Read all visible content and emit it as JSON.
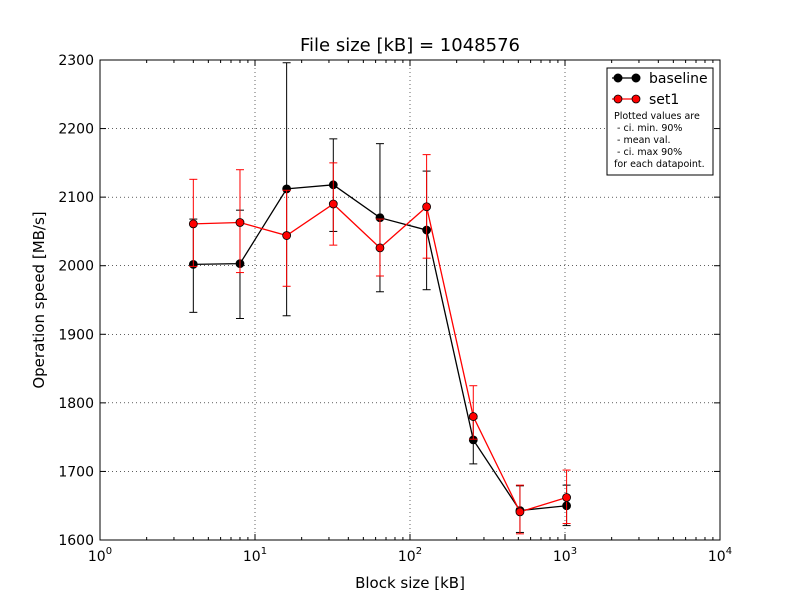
{
  "chart_data": {
    "type": "line",
    "title": "File size [kB] = 1048576",
    "xlabel": "Block size [kB]",
    "ylabel": "Operation speed [MB/s]",
    "xscale": "log",
    "xlim": [
      1,
      10000
    ],
    "ylim": [
      1600,
      2300
    ],
    "grid": true,
    "legend_position": "top-right",
    "x_ticks": [
      {
        "base": "10",
        "exp": "0"
      },
      {
        "base": "10",
        "exp": "1"
      },
      {
        "base": "10",
        "exp": "2"
      },
      {
        "base": "10",
        "exp": "3"
      },
      {
        "base": "10",
        "exp": "4"
      }
    ],
    "y_ticks": [
      "1600",
      "1700",
      "1800",
      "1900",
      "2000",
      "2100",
      "2200",
      "2300"
    ],
    "x": [
      4,
      8,
      16,
      32,
      64,
      128,
      256,
      512,
      1024
    ],
    "series": [
      {
        "name": "baseline",
        "color": "#000000",
        "values": [
          2002,
          2003,
          2112,
          2118,
          2070,
          2052,
          1746,
          1643,
          1650
        ],
        "ci_lower": [
          1932,
          1923,
          1927,
          2050,
          1962,
          1965,
          1711,
          1611,
          1621
        ],
        "ci_upper": [
          2068,
          2081,
          2296,
          2185,
          2178,
          2138,
          1777,
          1679,
          1680
        ]
      },
      {
        "name": "set1",
        "color": "#ff0000",
        "values": [
          2061,
          2063,
          2044,
          2090,
          2026,
          2086,
          1780,
          1641,
          1662
        ],
        "ci_lower": [
          1999,
          1990,
          1970,
          2030,
          1985,
          2011,
          1747,
          1609,
          1624
        ],
        "ci_upper": [
          2126,
          2140,
          2110,
          2150,
          2068,
          2162,
          1825,
          1680,
          1702
        ]
      }
    ],
    "legend_note": [
      "Plotted values are",
      " - ci. min. 90%",
      " - mean val.",
      " - ci. max 90%",
      "for each datapoint."
    ]
  }
}
